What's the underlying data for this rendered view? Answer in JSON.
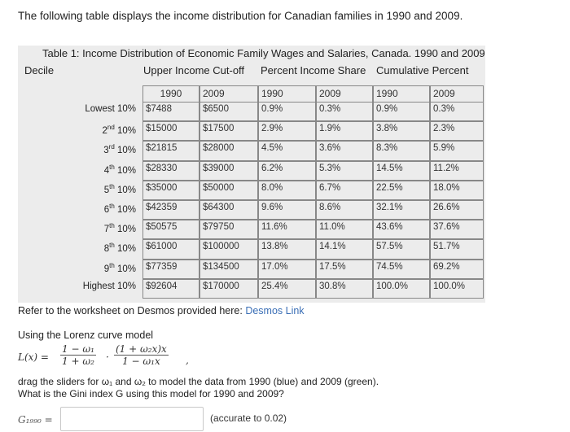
{
  "intro": "The following table displays the income distribution for Canadian families in 1990 and 2009.",
  "table": {
    "caption": "Table 1: Income Distribution of Economic Family Wages and Salaries, Canada. 1990 and 2009",
    "headers": {
      "decile": "Decile",
      "cutoff": "Upper Income Cut-off",
      "share": "Percent Income Share",
      "cumulative": "Cumulative Percent"
    },
    "years": [
      "1990",
      "2009",
      "1990",
      "2009",
      "1990",
      "2009"
    ],
    "rows": [
      {
        "decile": "Lowest 10%",
        "c1990": "$7488",
        "c2009": "$6500",
        "s1990": "0.9%",
        "s2009": "0.3%",
        "p1990": "0.9%",
        "p2009": "0.3%"
      },
      {
        "decile": "2nd 10%",
        "c1990": "$15000",
        "c2009": "$17500",
        "s1990": "2.9%",
        "s2009": "1.9%",
        "p1990": "3.8%",
        "p2009": "2.3%"
      },
      {
        "decile": "3rd 10%",
        "c1990": "$21815",
        "c2009": "$28000",
        "s1990": "4.5%",
        "s2009": "3.6%",
        "p1990": "8.3%",
        "p2009": "5.9%"
      },
      {
        "decile": "4th 10%",
        "c1990": "$28330",
        "c2009": "$39000",
        "s1990": "6.2%",
        "s2009": "5.3%",
        "p1990": "14.5%",
        "p2009": "11.2%"
      },
      {
        "decile": "5th 10%",
        "c1990": "$35000",
        "c2009": "$50000",
        "s1990": "8.0%",
        "s2009": "6.7%",
        "p1990": "22.5%",
        "p2009": "18.0%"
      },
      {
        "decile": "6th 10%",
        "c1990": "$42359",
        "c2009": "$64300",
        "s1990": "9.6%",
        "s2009": "8.6%",
        "p1990": "32.1%",
        "p2009": "26.6%"
      },
      {
        "decile": "7th 10%",
        "c1990": "$50575",
        "c2009": "$79750",
        "s1990": "11.6%",
        "s2009": "11.0%",
        "p1990": "43.6%",
        "p2009": "37.6%"
      },
      {
        "decile": "8th 10%",
        "c1990": "$61000",
        "c2009": "$100000",
        "s1990": "13.8%",
        "s2009": "14.1%",
        "p1990": "57.5%",
        "p2009": "51.7%"
      },
      {
        "decile": "9th 10%",
        "c1990": "$77359",
        "c2009": "$134500",
        "s1990": "17.0%",
        "s2009": "17.5%",
        "p1990": "74.5%",
        "p2009": "69.2%"
      },
      {
        "decile": "Highest 10%",
        "c1990": "$92604",
        "c2009": "$170000",
        "s1990": "25.4%",
        "s2009": "30.8%",
        "p1990": "100.0%",
        "p2009": "100.0%"
      }
    ]
  },
  "refer": {
    "text": "Refer to the worksheet on Desmos provided here: ",
    "link": "Desmos Link"
  },
  "lorenz": {
    "title": "Using the Lorenz curve model",
    "lhs": "L(x) =",
    "frac1_num": "1 − ω₁",
    "frac1_den": "1 + ω₂",
    "dot": "·",
    "frac2_num": "(1 + ω₂x)x",
    "frac2_den": "1 − ω₁x",
    "comma": ","
  },
  "instructions": [
    "drag the sliders for ω₁ and ω₂ to model the data from 1990 (blue) and 2009 (green).",
    "What is the Gini index G using this model for 1990 and 2009?"
  ],
  "answer": {
    "label": "G₁₉₉₀ =",
    "value": "",
    "hint": "(accurate to 0.02)"
  }
}
